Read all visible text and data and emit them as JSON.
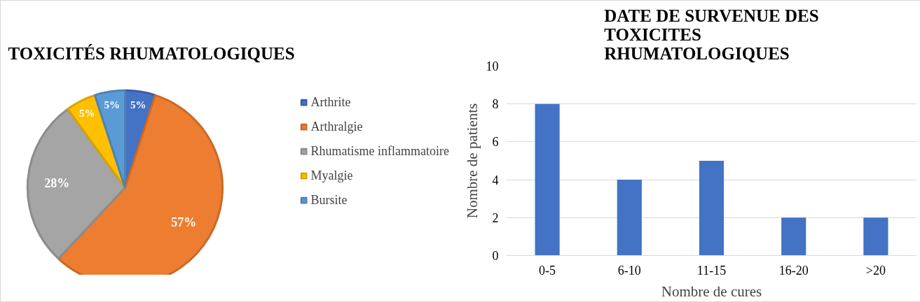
{
  "chart_data": [
    {
      "type": "pie",
      "title": "TOXICITÉS RHUMATOLOGIQUES",
      "categories": [
        "Arthrite",
        "Arthralgie",
        "Rhumatisme inflammatoire",
        "Myalgie",
        "Bursite"
      ],
      "values": [
        5,
        57,
        28,
        5,
        5
      ],
      "colors": [
        "#4472c4",
        "#ed7d31",
        "#a5a5a5",
        "#ffc000",
        "#5b9bd5"
      ],
      "value_labels": [
        "5%",
        "57%",
        "28%",
        "5%",
        "5%"
      ],
      "legend": "right"
    },
    {
      "type": "bar",
      "title": "DATE DE SURVENUE DES TOXICITES RHUMATOLOGIQUES",
      "xlabel": "Nombre de cures",
      "ylabel": "Nombre de patients",
      "categories": [
        "0-5",
        "6-10",
        "11-15",
        "16-20",
        ">20"
      ],
      "values": [
        8,
        4,
        5,
        2,
        2
      ],
      "color": "#4472c4",
      "ylim": [
        0,
        10
      ],
      "yticks": [
        0,
        2,
        4,
        6,
        8,
        10
      ],
      "grid": "y"
    }
  ]
}
